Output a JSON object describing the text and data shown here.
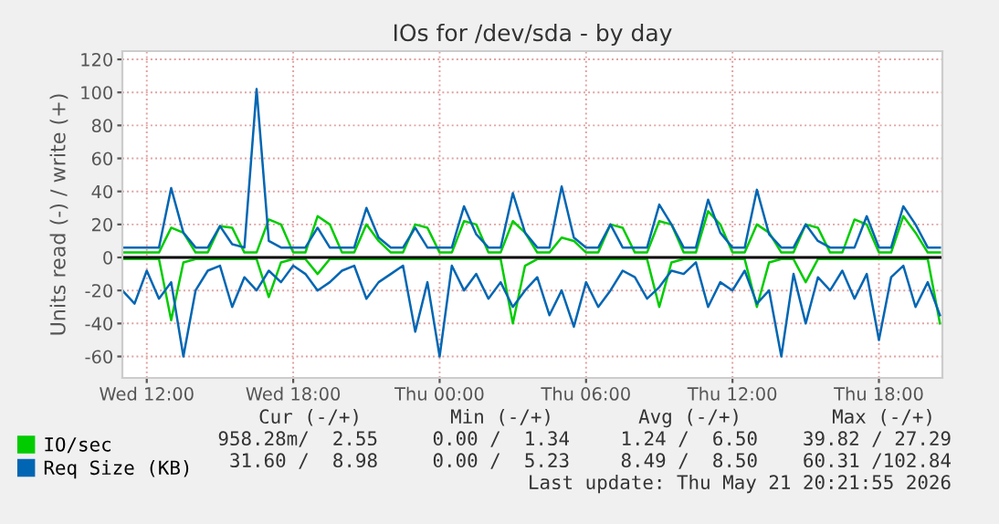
{
  "chart_data": {
    "type": "line",
    "title": "IOs for /dev/sda - by day",
    "ylabel": "Units read (-) / write (+)",
    "x": [
      "2026-05-20T11:00",
      "2026-05-20T11:30",
      "2026-05-20T12:00",
      "2026-05-20T12:30",
      "2026-05-20T13:00",
      "2026-05-20T13:30",
      "2026-05-20T14:00",
      "2026-05-20T14:30",
      "2026-05-20T15:00",
      "2026-05-20T15:30",
      "2026-05-20T16:00",
      "2026-05-20T16:30",
      "2026-05-20T17:00",
      "2026-05-20T17:30",
      "2026-05-20T18:00",
      "2026-05-20T18:30",
      "2026-05-20T19:00",
      "2026-05-20T19:30",
      "2026-05-20T20:00",
      "2026-05-20T20:30",
      "2026-05-20T21:00",
      "2026-05-20T21:30",
      "2026-05-20T22:00",
      "2026-05-20T22:30",
      "2026-05-20T23:00",
      "2026-05-20T23:30",
      "2026-05-21T00:00",
      "2026-05-21T00:30",
      "2026-05-21T01:00",
      "2026-05-21T01:30",
      "2026-05-21T02:00",
      "2026-05-21T02:30",
      "2026-05-21T03:00",
      "2026-05-21T03:30",
      "2026-05-21T04:00",
      "2026-05-21T04:30",
      "2026-05-21T05:00",
      "2026-05-21T05:30",
      "2026-05-21T06:00",
      "2026-05-21T06:30",
      "2026-05-21T07:00",
      "2026-05-21T07:30",
      "2026-05-21T08:00",
      "2026-05-21T08:30",
      "2026-05-21T09:00",
      "2026-05-21T09:30",
      "2026-05-21T10:00",
      "2026-05-21T10:30",
      "2026-05-21T11:00",
      "2026-05-21T11:30",
      "2026-05-21T12:00",
      "2026-05-21T12:30",
      "2026-05-21T13:00",
      "2026-05-21T13:30",
      "2026-05-21T14:00",
      "2026-05-21T14:30",
      "2026-05-21T15:00",
      "2026-05-21T15:30",
      "2026-05-21T16:00",
      "2026-05-21T16:30",
      "2026-05-21T17:00",
      "2026-05-21T17:30",
      "2026-05-21T18:00",
      "2026-05-21T18:30",
      "2026-05-21T19:00",
      "2026-05-21T19:30",
      "2026-05-21T20:00",
      "2026-05-21T20:30"
    ],
    "series": [
      {
        "name": "IO/sec",
        "color": "#00cc00",
        "values": [
          3,
          3,
          3,
          3,
          18,
          15,
          3,
          3,
          19,
          18,
          3,
          3,
          23,
          20,
          3,
          3,
          25,
          20,
          3,
          3,
          20,
          10,
          3,
          3,
          20,
          18,
          3,
          3,
          22,
          20,
          3,
          3,
          22,
          15,
          3,
          3,
          12,
          10,
          3,
          3,
          20,
          18,
          3,
          3,
          22,
          20,
          3,
          3,
          28,
          20,
          3,
          3,
          20,
          15,
          3,
          3,
          20,
          18,
          3,
          3,
          23,
          20,
          3,
          3,
          25,
          15,
          3,
          3
        ]
      },
      {
        "name": "Req Size (KB)",
        "color": "#0066b3",
        "values": [
          6,
          6,
          6,
          6,
          42,
          15,
          6,
          6,
          19,
          8,
          6,
          102,
          10,
          6,
          6,
          6,
          18,
          6,
          6,
          6,
          30,
          12,
          6,
          6,
          18,
          6,
          6,
          6,
          31,
          14,
          6,
          6,
          39,
          15,
          6,
          6,
          43,
          12,
          6,
          6,
          20,
          6,
          6,
          6,
          32,
          20,
          6,
          6,
          35,
          15,
          6,
          6,
          41,
          14,
          6,
          6,
          20,
          10,
          6,
          6,
          6,
          25,
          6,
          6,
          31,
          20,
          6,
          6
        ]
      },
      {
        "color": "#00cc00",
        "values": [
          -1,
          -1,
          -1,
          -1,
          -38,
          -3,
          -1,
          -1,
          -1,
          -1,
          -1,
          -1,
          -24,
          -3,
          -1,
          -1,
          -10,
          -1,
          -1,
          -1,
          -1,
          -1,
          -1,
          -1,
          -1,
          -1,
          -1,
          -1,
          -1,
          -1,
          -1,
          -1,
          -40,
          -5,
          -1,
          -1,
          -1,
          -1,
          -1,
          -1,
          -1,
          -1,
          -1,
          -1,
          -30,
          -3,
          -1,
          -1,
          -1,
          -1,
          -1,
          -1,
          -30,
          -3,
          -1,
          -1,
          -15,
          -1,
          -1,
          -1,
          -1,
          -1,
          -1,
          -1,
          -1,
          -1,
          -1,
          -40
        ]
      },
      {
        "color": "#0066b3",
        "values": [
          -20,
          -28,
          -8,
          -25,
          -15,
          -60,
          -20,
          -8,
          -5,
          -30,
          -12,
          -20,
          -8,
          -15,
          -5,
          -10,
          -20,
          -15,
          -8,
          -5,
          -25,
          -15,
          -10,
          -5,
          -45,
          -15,
          -60,
          -5,
          -20,
          -10,
          -25,
          -15,
          -30,
          -20,
          -12,
          -35,
          -20,
          -42,
          -15,
          -30,
          -20,
          -8,
          -12,
          -25,
          -18,
          -8,
          -10,
          -3,
          -30,
          -15,
          -20,
          -8,
          -28,
          -20,
          -60,
          -10,
          -40,
          -12,
          -20,
          -8,
          -25,
          -10,
          -50,
          -12,
          -5,
          -30,
          -15,
          -35
        ]
      }
    ],
    "xlim": [
      "2026-05-20T11:00",
      "2026-05-21T20:36"
    ],
    "ylim": [
      -73,
      125
    ],
    "xticks": [
      {
        "value": "2026-05-20T12:00",
        "label": "Wed 12:00"
      },
      {
        "value": "2026-05-20T18:00",
        "label": "Wed 18:00"
      },
      {
        "value": "2026-05-21T00:00",
        "label": "Thu 00:00"
      },
      {
        "value": "2026-05-21T06:00",
        "label": "Thu 06:00"
      },
      {
        "value": "2026-05-21T12:00",
        "label": "Thu 12:00"
      },
      {
        "value": "2026-05-21T18:00",
        "label": "Thu 18:00"
      }
    ],
    "yticks": [
      -60,
      -40,
      -20,
      0,
      20,
      40,
      60,
      80,
      100,
      120
    ],
    "ref_lines": [
      {
        "axis": "y",
        "value": 0,
        "color": "#000000"
      }
    ],
    "grid": true,
    "legend": "bottom left",
    "annotations": [
      "Cur (-/+)",
      "Min (-/+)",
      "Avg (-/+)",
      "Max (-/+)",
      "958.28m/  2.55",
      "0.00 /  1.34",
      "1.24 /  6.50",
      "39.82 / 27.29",
      "31.60 /  8.98",
      "0.00 /  5.23",
      "8.49 /  8.50",
      "60.31 /102.84",
      "Last update: Thu May 21 20:21:55 2026"
    ]
  }
}
